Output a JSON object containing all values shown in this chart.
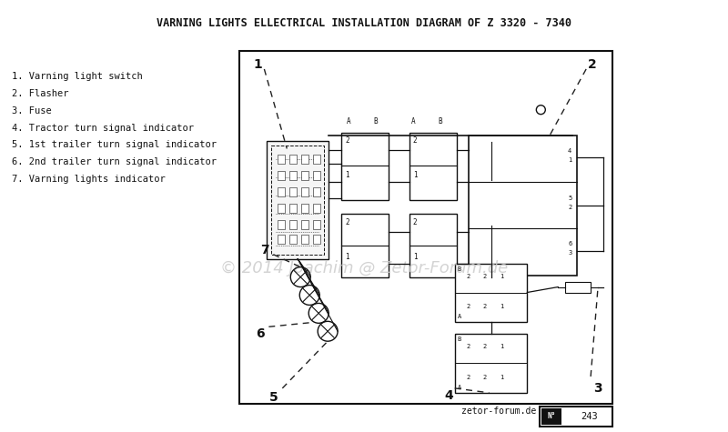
{
  "title": "VARNING LIGHTS ELLECTRICAL INSTALLATION DIAGRAM OF Z 3320 - 7340",
  "bg_color": "#ffffff",
  "legend_items": [
    "1. Varning light switch",
    "2. Flasher",
    "3. Fuse",
    "4. Tractor turn signal indicator",
    "5. 1st trailer turn signal indicator",
    "6. 2nd trailer turn signal indicator",
    "7. Varning lights indicator"
  ],
  "watermark": "© 2014 Joachim @ Zetor-Forum.de",
  "footer_text": "zetor-forum.de",
  "page_num": "N° 243",
  "line_color": "#111111",
  "dashed_color": "#222222"
}
